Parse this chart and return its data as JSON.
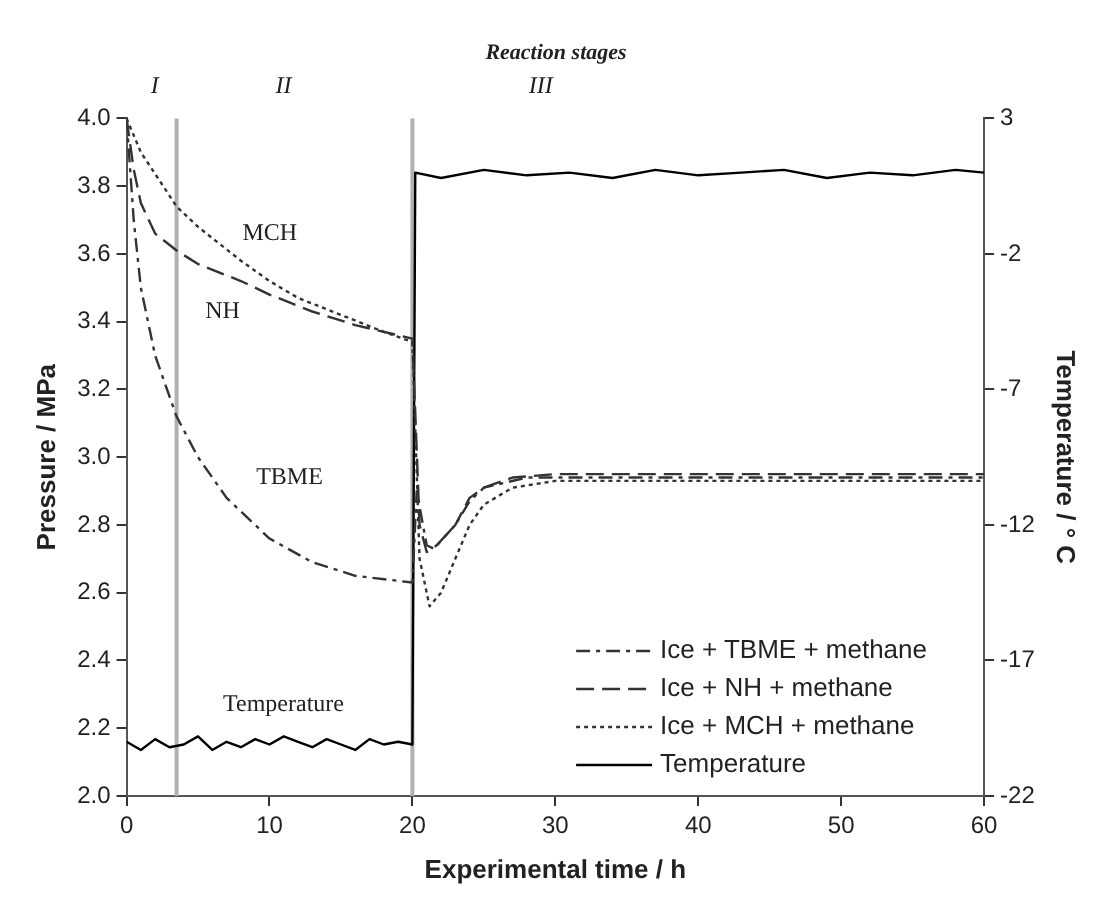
{
  "chart_data": {
    "type": "line",
    "title": "Reaction stages",
    "xlabel": "Experimental time / h",
    "ylabel": "Pressure / MPa",
    "y2label": "Temperature / ° C",
    "xlim": [
      0,
      60
    ],
    "xticks": [
      0,
      10,
      20,
      30,
      40,
      50,
      60
    ],
    "ylim": [
      2.0,
      4.0
    ],
    "yticks": [
      {
        "value": 2,
        "label": "2.0"
      },
      {
        "value": 2.2,
        "label": "2.2"
      },
      {
        "value": 2.4,
        "label": "2.4"
      },
      {
        "value": 2.6,
        "label": "2.6"
      },
      {
        "value": 2.8,
        "label": "2.8"
      },
      {
        "value": 3,
        "label": "3.0"
      },
      {
        "value": 3.2,
        "label": "3.2"
      },
      {
        "value": 3.4,
        "label": "3.4"
      },
      {
        "value": 3.6,
        "label": "3.6"
      },
      {
        "value": 3.8,
        "label": "3.8"
      },
      {
        "value": 4,
        "label": "4.0"
      }
    ],
    "y2lim": [
      -22,
      3
    ],
    "y2ticks": [
      -22,
      -17,
      -12,
      -7,
      -2,
      3
    ],
    "grid": false,
    "legend": "bottom right",
    "marker": "none",
    "series": [
      {
        "name": "Ice + TBME + methane",
        "color": "#333333",
        "line_style": "dashdot",
        "x": [
          0,
          0.5,
          1,
          2,
          3.5,
          5,
          7,
          10,
          13,
          16,
          20,
          20.3,
          21,
          21.5,
          23,
          24,
          25,
          28,
          30,
          60
        ],
        "values": [
          4.0,
          3.7,
          3.5,
          3.3,
          3.12,
          3.0,
          2.88,
          2.76,
          2.69,
          2.65,
          2.63,
          2.9,
          2.74,
          2.73,
          2.8,
          2.87,
          2.91,
          2.94,
          2.94,
          2.94
        ]
      },
      {
        "name": "Ice + NH + methane",
        "color": "#333333",
        "line_style": "dashed",
        "x": [
          0,
          0.5,
          1,
          2,
          3.5,
          5,
          8,
          10,
          13,
          16,
          20,
          20.5,
          21,
          21.7,
          23,
          24,
          25,
          27,
          30,
          60
        ],
        "values": [
          4.0,
          3.85,
          3.75,
          3.66,
          3.61,
          3.57,
          3.52,
          3.48,
          3.43,
          3.39,
          3.35,
          2.8,
          2.72,
          2.74,
          2.8,
          2.88,
          2.91,
          2.94,
          2.95,
          2.95
        ]
      },
      {
        "name": "Ice + MCH + methane",
        "color": "#333333",
        "line_style": "dotted",
        "x": [
          0,
          1,
          3.5,
          5,
          8,
          10,
          12,
          15,
          18,
          20,
          20.5,
          21.2,
          22,
          23,
          24,
          25,
          27,
          30,
          60
        ],
        "values": [
          4.0,
          3.9,
          3.74,
          3.68,
          3.58,
          3.52,
          3.47,
          3.42,
          3.37,
          3.34,
          2.7,
          2.56,
          2.6,
          2.7,
          2.8,
          2.86,
          2.91,
          2.93,
          2.93
        ]
      },
      {
        "name": "Temperature",
        "color": "#000000",
        "line_style": "solid",
        "axis": "y2",
        "x": [
          0,
          1,
          2,
          3,
          4,
          5,
          6,
          7,
          8,
          9,
          10,
          11,
          12,
          13,
          14,
          15,
          16,
          17,
          18,
          19,
          20,
          20.2,
          22,
          25,
          28,
          31,
          34,
          37,
          40,
          43,
          46,
          49,
          52,
          55,
          58,
          60
        ],
        "values": [
          -20,
          -20.3,
          -19.9,
          -20.2,
          -20.1,
          -19.8,
          -20.3,
          -20,
          -20.2,
          -19.9,
          -20.1,
          -19.8,
          -20,
          -20.2,
          -19.9,
          -20.1,
          -20.3,
          -19.9,
          -20.1,
          -20,
          -20.1,
          1,
          0.8,
          1.1,
          0.9,
          1,
          0.8,
          1.1,
          0.9,
          1,
          1.1,
          0.8,
          1,
          0.9,
          1.1,
          1
        ]
      }
    ],
    "ref_lines": [
      {
        "axis": "x",
        "value": 3.5,
        "color": "#b0b0b0"
      },
      {
        "axis": "x",
        "value": 20,
        "color": "#b0b0b0"
      }
    ],
    "annotations": [
      "I",
      "II",
      "III",
      "MCH",
      "NH",
      "TBME",
      "Temperature"
    ]
  }
}
